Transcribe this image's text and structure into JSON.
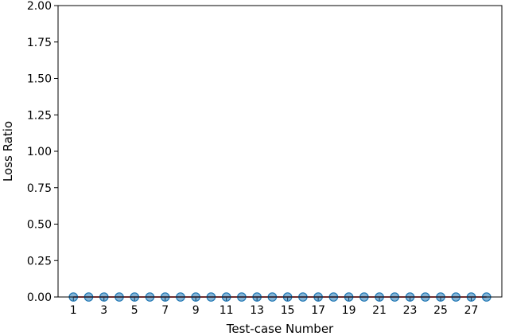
{
  "chart_data": {
    "type": "scatter",
    "title": "",
    "xlabel": "Test-case Number",
    "ylabel": "Loss Ratio",
    "xlim": [
      0,
      29
    ],
    "ylim": [
      0.0,
      2.0
    ],
    "x_ticks": [
      1,
      3,
      5,
      7,
      9,
      11,
      13,
      15,
      17,
      19,
      21,
      23,
      25,
      27
    ],
    "x_tick_labels": [
      "1",
      "3",
      "5",
      "7",
      "9",
      "11",
      "13",
      "15",
      "17",
      "19",
      "21",
      "23",
      "25",
      "27"
    ],
    "y_ticks": [
      0.0,
      0.25,
      0.5,
      0.75,
      1.0,
      1.25,
      1.5,
      1.75,
      2.0
    ],
    "y_tick_labels": [
      "0.00",
      "0.25",
      "0.50",
      "0.75",
      "1.00",
      "1.25",
      "1.50",
      "1.75",
      "2.00"
    ],
    "grid": false,
    "series": [
      {
        "marker": "circle",
        "color": "#1f77b4",
        "x": [
          1,
          2,
          3,
          4,
          5,
          6,
          7,
          8,
          9,
          10,
          11,
          12,
          13,
          14,
          15,
          16,
          17,
          18,
          19,
          20,
          21,
          22,
          23,
          24,
          25,
          26,
          27,
          28
        ],
        "y": [
          0,
          0,
          0,
          0,
          0,
          0,
          0,
          0,
          0,
          0,
          0,
          0,
          0,
          0,
          0,
          0,
          0,
          0,
          0,
          0,
          0,
          0,
          0,
          0,
          0,
          0,
          0,
          0
        ]
      }
    ],
    "reference_line": {
      "y": 0,
      "x_range": [
        1,
        28
      ],
      "color": "#d62728"
    }
  }
}
